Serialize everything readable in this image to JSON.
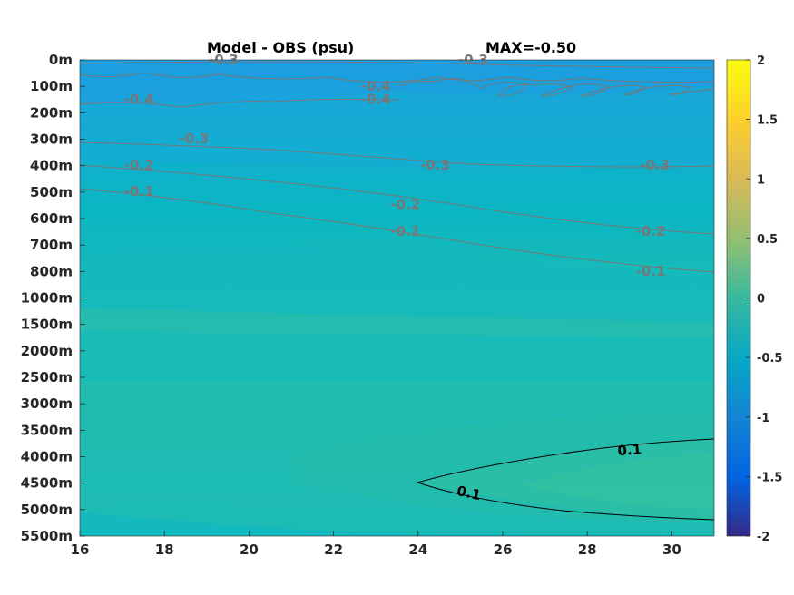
{
  "chart_data": {
    "type": "heatmap",
    "title": "Model - OBS (psu)",
    "subtitle": "MAX=-0.50",
    "x_ticks": [
      16,
      18,
      20,
      22,
      24,
      26,
      28,
      30
    ],
    "xlim": [
      16,
      31
    ],
    "y_ticks": [
      "0m",
      "100m",
      "200m",
      "300m",
      "400m",
      "500m",
      "600m",
      "700m",
      "800m",
      "1000m",
      "1500m",
      "2000m",
      "2500m",
      "3000m",
      "3500m",
      "4000m",
      "4500m",
      "5000m",
      "5500m"
    ],
    "colorbar": {
      "ticks": [
        2,
        1.5,
        1,
        0.5,
        0,
        -0.5,
        -1,
        -1.5,
        -2
      ],
      "range": [
        -2,
        2
      ],
      "colormap": "parula"
    },
    "contour_labels": [
      {
        "text": "-0.3",
        "x": 19.4,
        "y": "0m"
      },
      {
        "text": "-0.3",
        "x": 25.3,
        "y": "0m"
      },
      {
        "text": "-0.4",
        "x": 23.0,
        "y": "100m"
      },
      {
        "text": "-0.4",
        "x": 23.0,
        "y": "150m"
      },
      {
        "text": "-0.4",
        "x": 17.4,
        "y": "150m"
      },
      {
        "text": "-0.3",
        "x": 18.7,
        "y": "300m"
      },
      {
        "text": "-0.2",
        "x": 17.4,
        "y": "400m"
      },
      {
        "text": "-0.3",
        "x": 24.4,
        "y": "400m"
      },
      {
        "text": "-0.3",
        "x": 29.6,
        "y": "400m"
      },
      {
        "text": "-0.1",
        "x": 17.4,
        "y": "500m"
      },
      {
        "text": "-0.2",
        "x": 23.7,
        "y": "550m"
      },
      {
        "text": "-0.1",
        "x": 23.7,
        "y": "650m"
      },
      {
        "text": "-0.2",
        "x": 29.5,
        "y": "650m"
      },
      {
        "text": "-0.1",
        "x": 29.5,
        "y": "800m"
      },
      {
        "text": "0.1",
        "x": 29.0,
        "y": "3900m"
      },
      {
        "text": "0.1",
        "x": 25.2,
        "y": "4700m"
      }
    ],
    "colors": {
      "background_field": "#13b8c0",
      "upper_field": "#1aa5d9",
      "positive_region": "#2bbea6",
      "positive_contour": "#000000",
      "negative_contour": "#777777"
    }
  }
}
